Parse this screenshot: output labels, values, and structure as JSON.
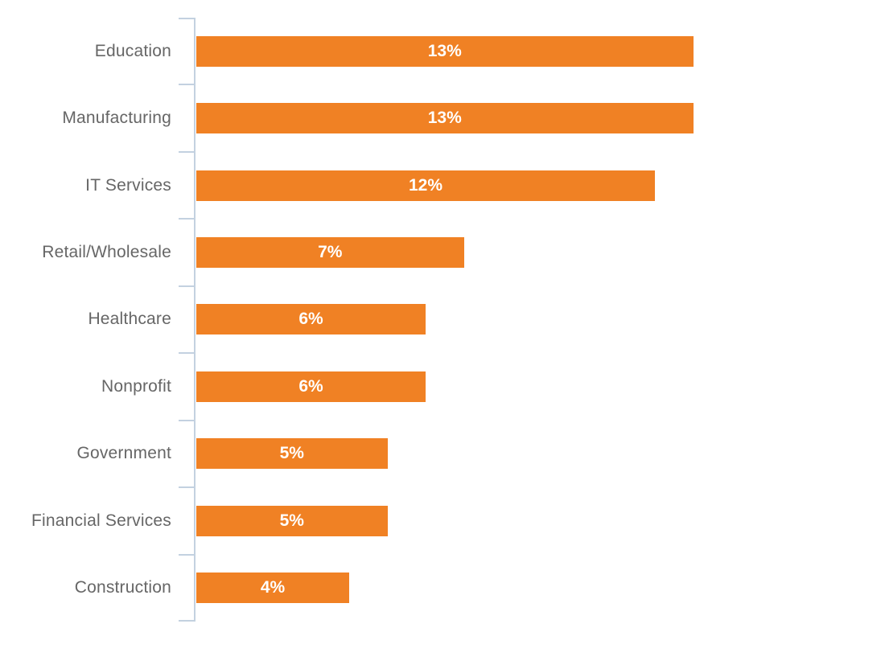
{
  "page": {
    "background": "#FFFFFF"
  },
  "chart_data": {
    "type": "bar",
    "orientation": "horizontal",
    "title": "",
    "xlabel": "",
    "ylabel": "",
    "categories": [
      "Education",
      "Manufacturing",
      "IT Services",
      "Retail/Wholesale",
      "Healthcare",
      "Nonprofit",
      "Government",
      "Financial Services",
      "Construction"
    ],
    "values": [
      13,
      13,
      12,
      7,
      6,
      6,
      5,
      5,
      4
    ],
    "data_labels": [
      "13%",
      "13%",
      "12%",
      "7%",
      "6%",
      "6%",
      "5%",
      "5%",
      "4%"
    ],
    "value_unit": "percent",
    "legend": "none",
    "grid": false,
    "axis": {
      "side": "left",
      "tick_marks": true,
      "color": "#C3D1E0"
    },
    "colors": {
      "bar": "#F08124",
      "category_label": "#666666",
      "data_label": "#FFFFFF"
    }
  }
}
